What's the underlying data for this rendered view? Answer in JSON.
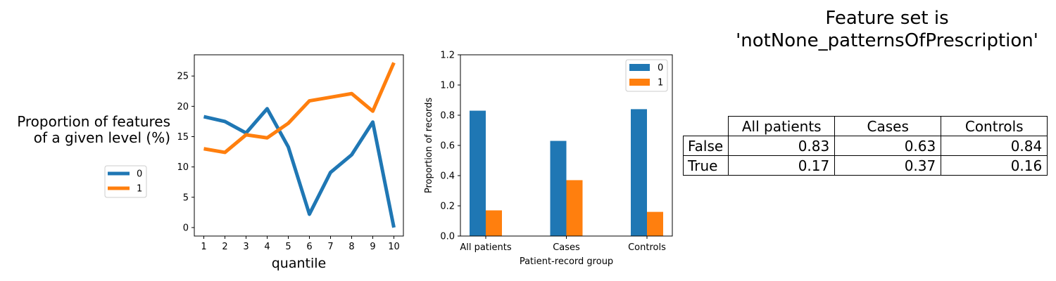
{
  "left_ylabel_line1": "Proportion of features",
  "left_ylabel_line2": "of a given level (%)",
  "feature_title_line1": "Feature set is",
  "feature_title_line2": "'notNone_patternsOfPrescription'",
  "colors": {
    "series0": "#1f77b4",
    "series1": "#ff7f0e"
  },
  "chart_data": [
    {
      "type": "line",
      "xlabel": "quantile",
      "ylabel": "",
      "x": [
        1,
        2,
        3,
        4,
        5,
        6,
        7,
        8,
        9,
        10
      ],
      "xticks": [
        "1",
        "2",
        "3",
        "4",
        "5",
        "6",
        "7",
        "8",
        "9",
        "10"
      ],
      "yticks": [
        "0",
        "5",
        "10",
        "15",
        "20",
        "25"
      ],
      "xlim": [
        0.55,
        10.45
      ],
      "ylim": [
        -1.4,
        28.5
      ],
      "legend": "left",
      "series": [
        {
          "name": "0",
          "values": [
            18.3,
            17.5,
            15.6,
            19.6,
            13.3,
            2.2,
            9.1,
            12.0,
            17.4,
            0.0
          ]
        },
        {
          "name": "1",
          "values": [
            13.0,
            12.4,
            15.3,
            14.8,
            17.2,
            20.9,
            21.5,
            22.1,
            19.2,
            27.2
          ]
        }
      ]
    },
    {
      "type": "bar",
      "xlabel": "Patient-record group",
      "ylabel": "Proportion of records",
      "categories": [
        "All patients",
        "Cases",
        "Controls"
      ],
      "yticks": [
        "0.0",
        "0.2",
        "0.4",
        "0.6",
        "0.8",
        "1.0",
        "1.2"
      ],
      "ylim": [
        0,
        1.2
      ],
      "legend": "top-right",
      "series": [
        {
          "name": "0",
          "values": [
            0.83,
            0.63,
            0.84
          ]
        },
        {
          "name": "1",
          "values": [
            0.17,
            0.37,
            0.16
          ]
        }
      ]
    },
    {
      "type": "table",
      "columns": [
        "All patients",
        "Cases",
        "Controls"
      ],
      "rows": [
        {
          "label": "False",
          "values": [
            "0.83",
            "0.63",
            "0.84"
          ]
        },
        {
          "label": "True",
          "values": [
            "0.17",
            "0.37",
            "0.16"
          ]
        }
      ]
    }
  ]
}
